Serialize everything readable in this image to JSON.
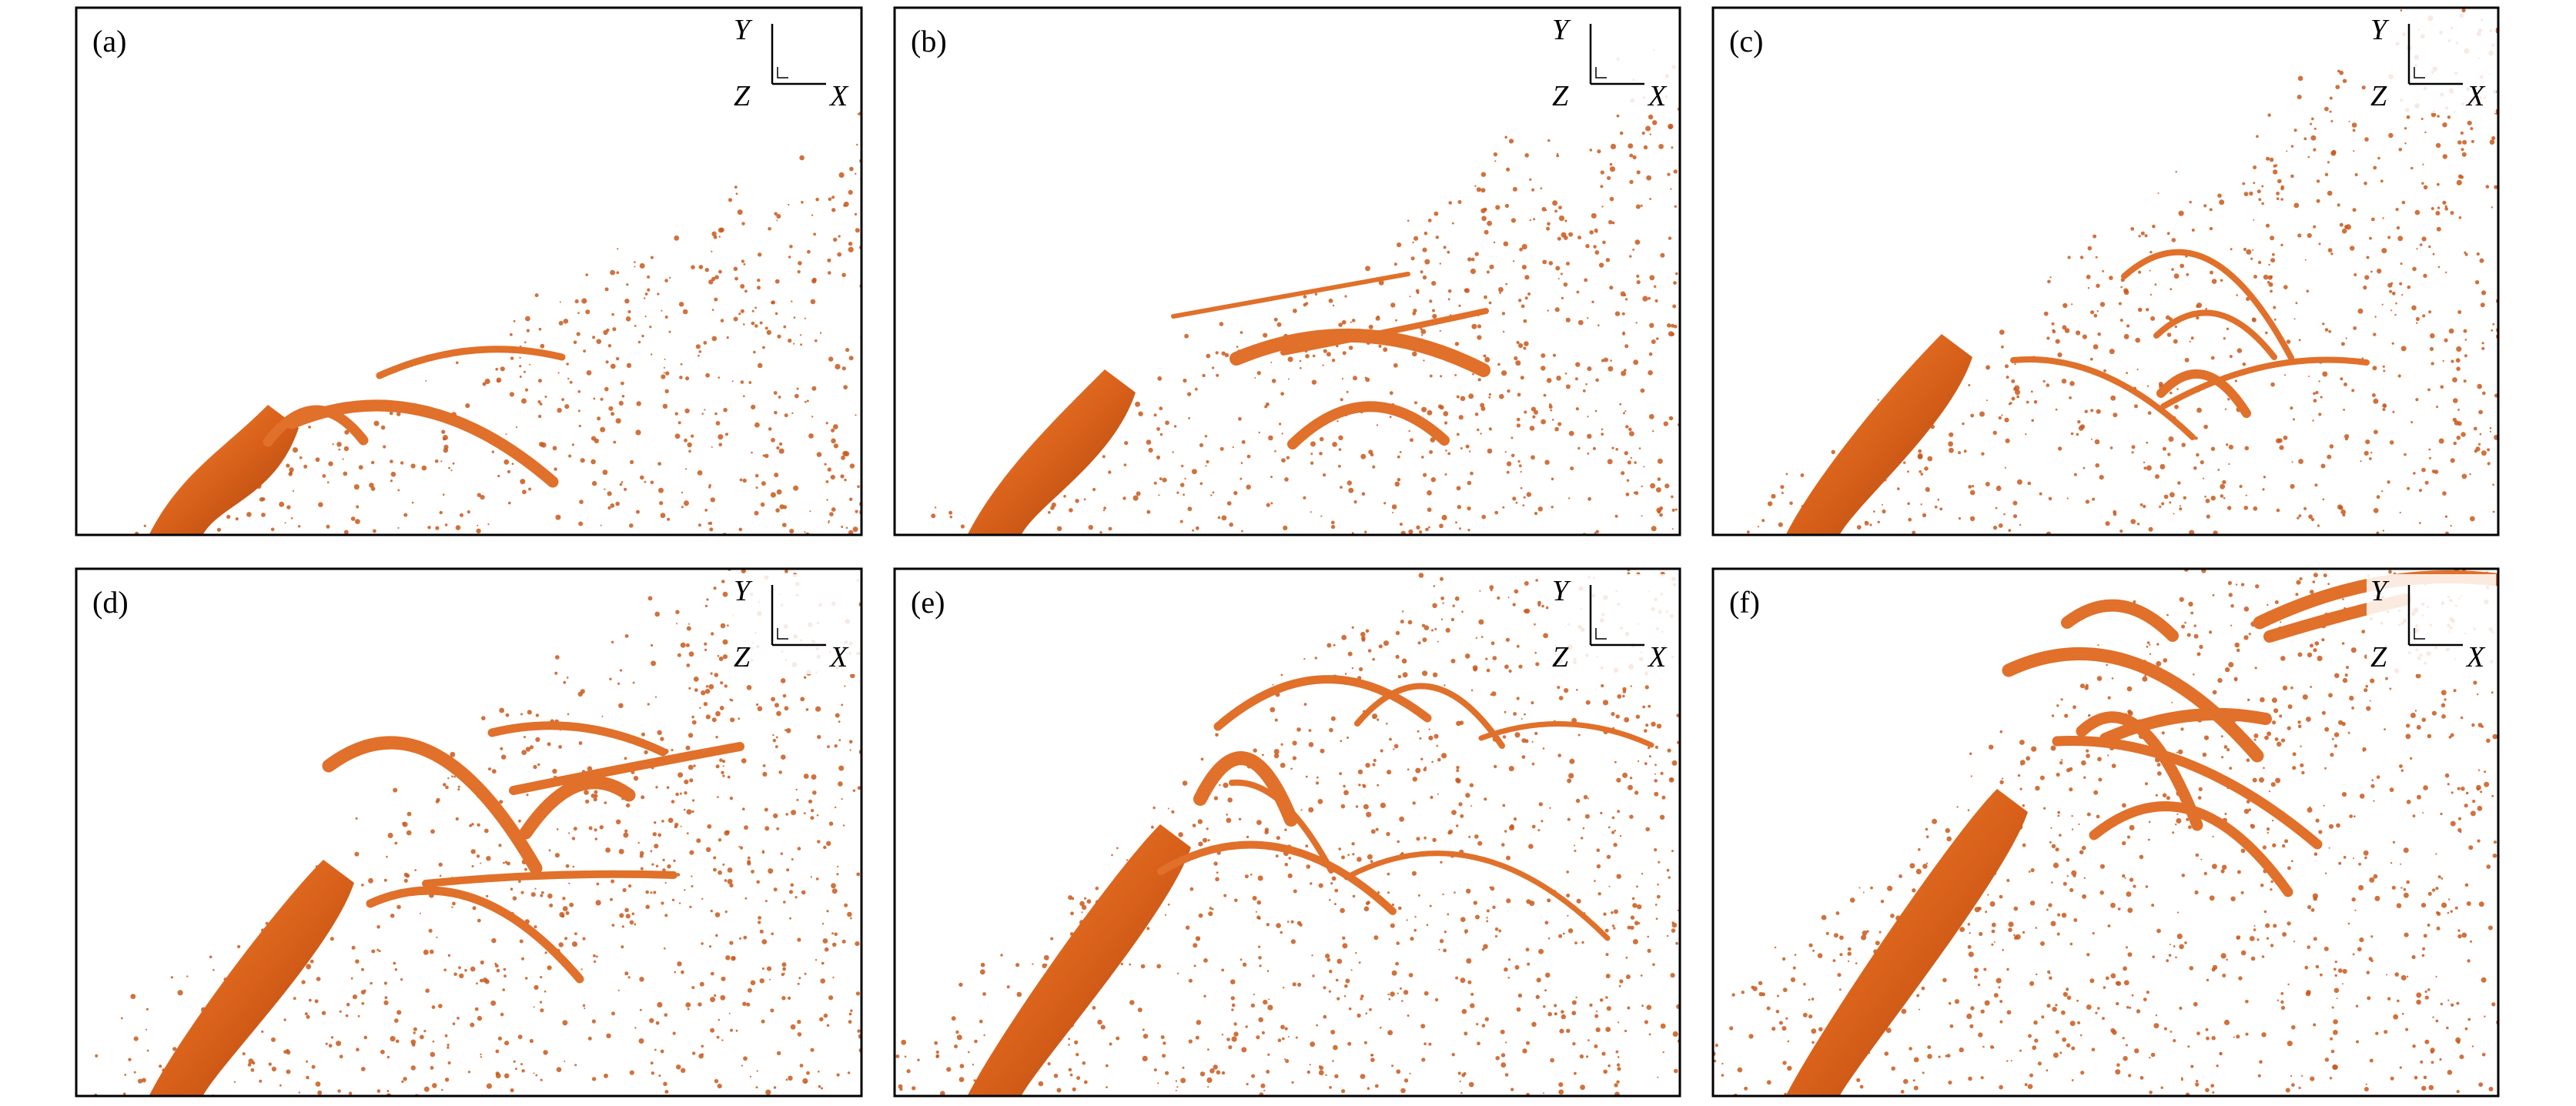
{
  "panels": [
    {
      "label": "(a)",
      "axes": {
        "y": "Y",
        "z": "Z",
        "x": "X"
      }
    },
    {
      "label": "(b)",
      "axes": {
        "y": "Y",
        "z": "Z",
        "x": "X"
      }
    },
    {
      "label": "(c)",
      "axes": {
        "y": "Y",
        "z": "Z",
        "x": "X"
      }
    },
    {
      "label": "(d)",
      "axes": {
        "y": "Y",
        "z": "Z",
        "x": "X"
      }
    },
    {
      "label": "(e)",
      "axes": {
        "y": "Y",
        "z": "Z",
        "x": "X"
      }
    },
    {
      "label": "(f)",
      "axes": {
        "y": "Y",
        "z": "Z",
        "x": "X"
      }
    }
  ]
}
